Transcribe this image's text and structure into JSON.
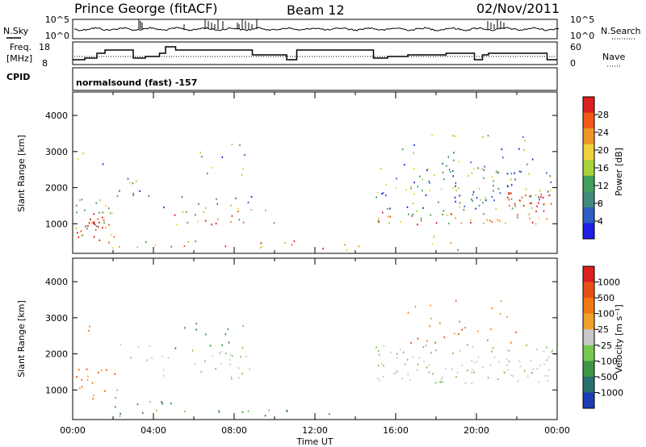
{
  "header": {
    "station": "Prince George (fitACF)",
    "beam": "Beam 12",
    "date": "02/Nov/2011"
  },
  "status_panel": {
    "nsky_label": "N.Sky",
    "nsearch_label": "N.Search",
    "freq_label_1": "Freq.",
    "freq_label_2": "[MHz]",
    "nave_label": "Nave",
    "cpid_label": "CPID",
    "cpid_value": "normalsound (fast) -157",
    "noise_ticks_left": [
      "10^5",
      "10^0"
    ],
    "noise_ticks_right": [
      "10^5",
      "10^0"
    ],
    "freq_ticks": [
      "18",
      "8"
    ],
    "nave_ticks": [
      "60",
      "0"
    ]
  },
  "colors": {
    "power_scale": [
      "#1e1ee6",
      "#2e5fc4",
      "#3f8c7e",
      "#3fa05a",
      "#a8d23c",
      "#f0d23c",
      "#f09628",
      "#f05a14",
      "#dc1e1e"
    ],
    "velocity_scale": [
      "#1e3cb4",
      "#2a6e6e",
      "#3c9646",
      "#78c850",
      "#c8c8c8",
      "#f0a028",
      "#f07814",
      "#e65014",
      "#dc1e1e"
    ]
  },
  "chart_data": [
    {
      "type": "heatmap",
      "panel": "power",
      "xlabel": "Time UT",
      "ylabel": "Slant Range [km]",
      "x_ticks": [
        "00:00",
        "04:00",
        "08:00",
        "12:00",
        "16:00",
        "20:00",
        "00:00"
      ],
      "xlim_hours": [
        0,
        24
      ],
      "y_ticks": [
        1000,
        2000,
        3000,
        4000
      ],
      "ylim": [
        180,
        4650
      ],
      "colorbar_label": "Power [dB]",
      "colorbar_ticks": [
        4,
        8,
        12,
        16,
        20,
        24,
        28
      ],
      "colorbar_range": [
        0,
        30
      ]
    },
    {
      "type": "heatmap",
      "panel": "velocity",
      "xlabel": "Time UT",
      "ylabel": "Slant Range [km]",
      "x_ticks": [
        "00:00",
        "04:00",
        "08:00",
        "12:00",
        "16:00",
        "20:00",
        "00:00"
      ],
      "xlim_hours": [
        0,
        24
      ],
      "y_ticks": [
        1000,
        2000,
        3000,
        4000
      ],
      "ylim": [
        180,
        4650
      ],
      "colorbar_label": "Velocity [m s⁻¹]",
      "colorbar_ticks": [
        "1000",
        "500",
        "100",
        "25",
        "-25",
        "-100",
        "-500",
        "-1000"
      ]
    }
  ]
}
